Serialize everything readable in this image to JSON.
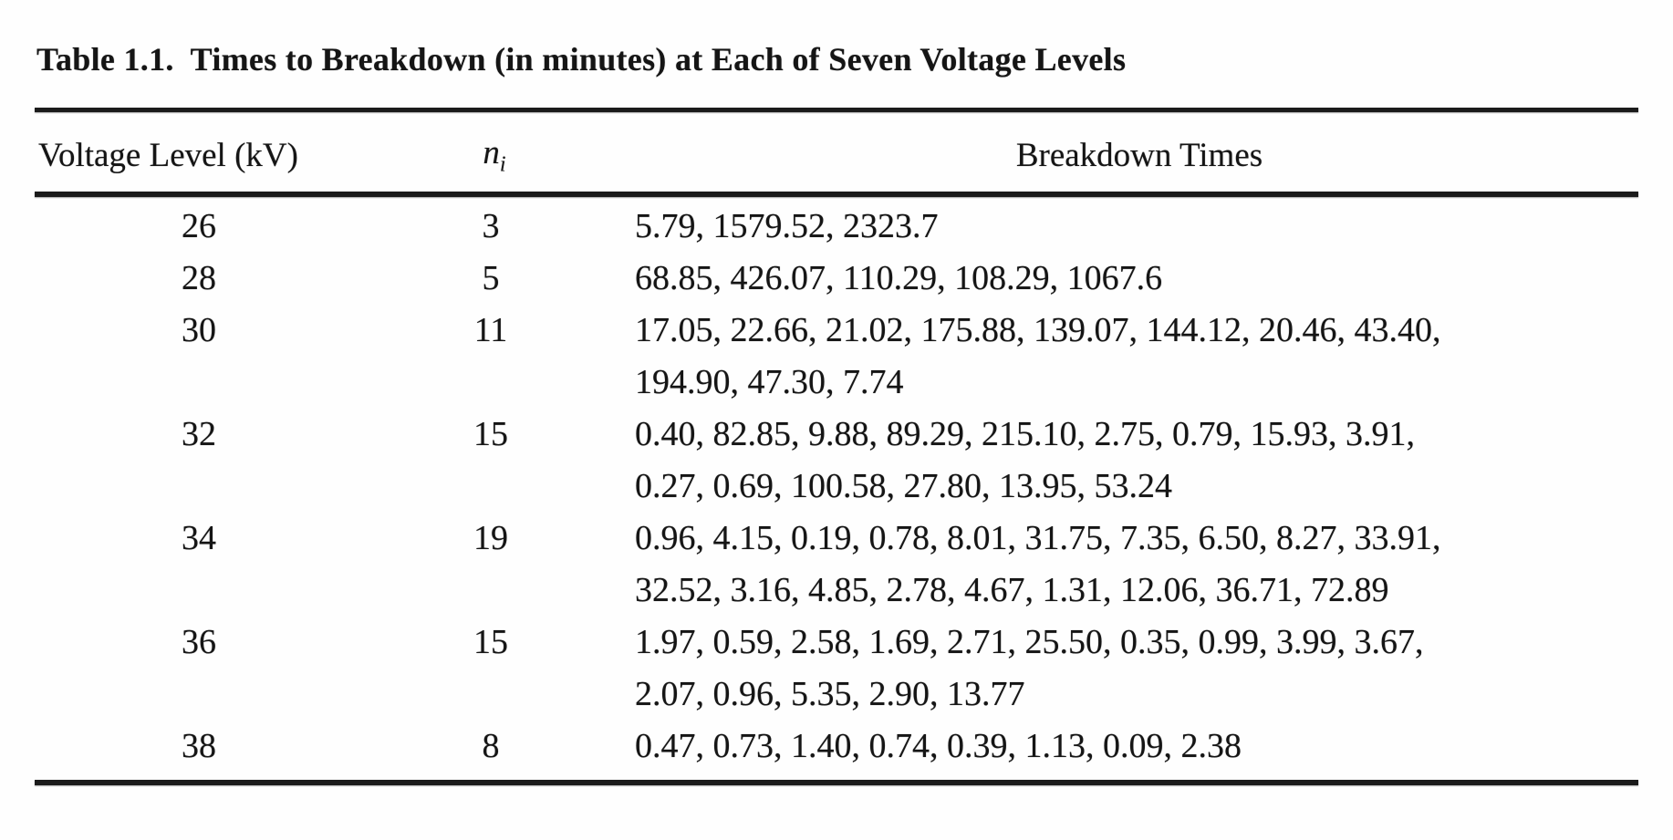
{
  "title": "Table 1.1.  Times to Breakdown (in minutes) at Each of Seven Voltage Levels",
  "table": {
    "columns": {
      "voltage": "Voltage Level (kV)",
      "n_base": "n",
      "n_sub": "i",
      "times": "Breakdown Times"
    },
    "rows": [
      {
        "voltage": "26",
        "n": "3",
        "lines": [
          "5.79, 1579.52, 2323.7"
        ]
      },
      {
        "voltage": "28",
        "n": "5",
        "lines": [
          "68.85, 426.07, 110.29, 108.29, 1067.6"
        ]
      },
      {
        "voltage": "30",
        "n": "11",
        "lines": [
          "17.05, 22.66, 21.02, 175.88, 139.07, 144.12, 20.46, 43.40,",
          "194.90, 47.30, 7.74"
        ]
      },
      {
        "voltage": "32",
        "n": "15",
        "lines": [
          "0.40, 82.85, 9.88, 89.29, 215.10, 2.75, 0.79, 15.93, 3.91,",
          "0.27, 0.69, 100.58, 27.80, 13.95, 53.24"
        ]
      },
      {
        "voltage": "34",
        "n": "19",
        "lines": [
          "0.96, 4.15, 0.19, 0.78, 8.01, 31.75, 7.35, 6.50, 8.27, 33.91,",
          "32.52, 3.16, 4.85, 2.78, 4.67, 1.31, 12.06, 36.71, 72.89"
        ]
      },
      {
        "voltage": "36",
        "n": "15",
        "lines": [
          "1.97, 0.59, 2.58, 1.69, 2.71, 25.50, 0.35, 0.99, 3.99, 3.67,",
          "2.07, 0.96, 5.35, 2.90, 13.77"
        ]
      },
      {
        "voltage": "38",
        "n": "8",
        "lines": [
          "0.47, 0.73, 1.40, 0.74, 0.39, 1.13, 0.09, 2.38"
        ]
      }
    ]
  },
  "chart_data": {
    "type": "table",
    "title": "Table 1.1. Times to Breakdown (in minutes) at Each of Seven Voltage Levels",
    "columns": [
      "Voltage Level (kV)",
      "ni",
      "Breakdown Times"
    ],
    "records": [
      {
        "voltage_kV": 26,
        "ni": 3,
        "breakdown_times": [
          5.79,
          1579.52,
          2323.7
        ]
      },
      {
        "voltage_kV": 28,
        "ni": 5,
        "breakdown_times": [
          68.85,
          426.07,
          110.29,
          108.29,
          1067.6
        ]
      },
      {
        "voltage_kV": 30,
        "ni": 11,
        "breakdown_times": [
          17.05,
          22.66,
          21.02,
          175.88,
          139.07,
          144.12,
          20.46,
          43.4,
          194.9,
          47.3,
          7.74
        ]
      },
      {
        "voltage_kV": 32,
        "ni": 15,
        "breakdown_times": [
          0.4,
          82.85,
          9.88,
          89.29,
          215.1,
          2.75,
          0.79,
          15.93,
          3.91,
          0.27,
          0.69,
          100.58,
          27.8,
          13.95,
          53.24
        ]
      },
      {
        "voltage_kV": 34,
        "ni": 19,
        "breakdown_times": [
          0.96,
          4.15,
          0.19,
          0.78,
          8.01,
          31.75,
          7.35,
          6.5,
          8.27,
          33.91,
          32.52,
          3.16,
          4.85,
          2.78,
          4.67,
          1.31,
          12.06,
          36.71,
          72.89
        ]
      },
      {
        "voltage_kV": 36,
        "ni": 15,
        "breakdown_times": [
          1.97,
          0.59,
          2.58,
          1.69,
          2.71,
          25.5,
          0.35,
          0.99,
          3.99,
          3.67,
          2.07,
          0.96,
          5.35,
          2.9,
          13.77
        ]
      },
      {
        "voltage_kV": 38,
        "ni": 8,
        "breakdown_times": [
          0.47,
          0.73,
          1.4,
          0.74,
          0.39,
          1.13,
          0.09,
          2.38
        ]
      }
    ]
  }
}
